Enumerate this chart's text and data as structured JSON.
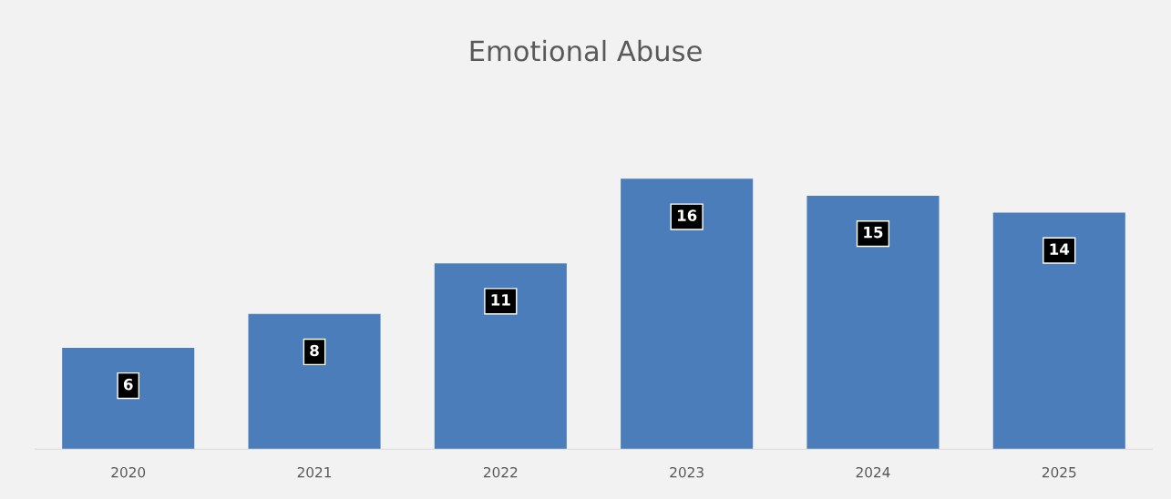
{
  "chart_data": {
    "type": "bar",
    "title": "Emotional Abuse",
    "categories": [
      "2020",
      "2021",
      "2022",
      "2023",
      "2024",
      "2025"
    ],
    "values": [
      6,
      8,
      11,
      16,
      15,
      14
    ],
    "color": "#4a7dba",
    "data_labels": true,
    "grid": false,
    "legend": false,
    "tick_labels": "x"
  }
}
